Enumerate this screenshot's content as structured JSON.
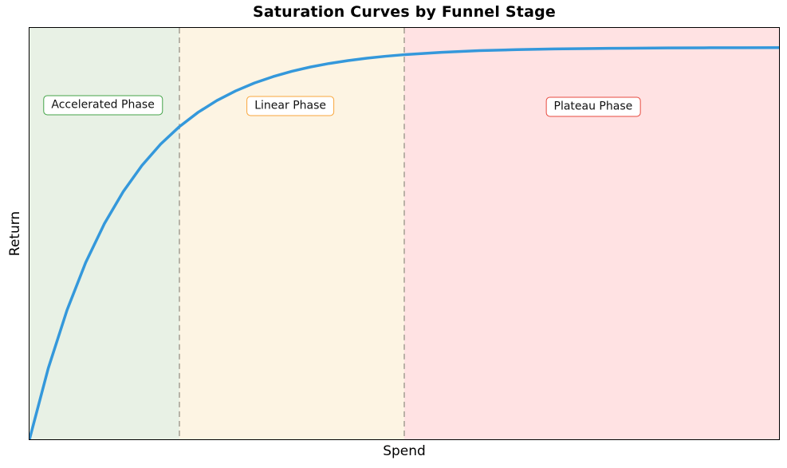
{
  "chart_data": {
    "type": "line",
    "title": "Saturation Curves by Funnel Stage",
    "xlabel": "Spend",
    "ylabel": "Return",
    "xlim": [
      0,
      1
    ],
    "ylim": [
      0,
      1.05
    ],
    "grid": false,
    "legend_position": "none",
    "tick_labels": "none",
    "frame_color": "#000000",
    "series": [
      {
        "name": "saturation-curve",
        "color": "#3498db",
        "line_width": 3.5,
        "formula": "y = 1 - exp(-8x)",
        "x": [
          0,
          0.025,
          0.05,
          0.075,
          0.1,
          0.125,
          0.15,
          0.175,
          0.2,
          0.225,
          0.25,
          0.275,
          0.3,
          0.325,
          0.35,
          0.375,
          0.4,
          0.425,
          0.45,
          0.475,
          0.5,
          0.55,
          0.6,
          0.65,
          0.7,
          0.75,
          0.8,
          0.85,
          0.9,
          0.95,
          1.0
        ],
        "y": [
          0,
          0.1813,
          0.3297,
          0.4512,
          0.5507,
          0.6321,
          0.6988,
          0.7534,
          0.7981,
          0.8347,
          0.8647,
          0.8892,
          0.9093,
          0.9257,
          0.9392,
          0.9502,
          0.9592,
          0.9666,
          0.9727,
          0.9776,
          0.9817,
          0.9877,
          0.9918,
          0.9945,
          0.9963,
          0.9975,
          0.9983,
          0.9989,
          0.9993,
          0.9995,
          0.9997
        ]
      }
    ],
    "regions": [
      {
        "label": "Accelerated Phase",
        "x_start": 0.0,
        "x_end": 0.2,
        "fill": "#e8f1e5",
        "label_border": "#44a449",
        "label_fx": 0.098,
        "label_fy": 0.188
      },
      {
        "label": "Linear Phase",
        "x_start": 0.2,
        "x_end": 0.5,
        "fill": "#fdf4e3",
        "label_border": "#f9a63c",
        "label_fx": 0.348,
        "label_fy": 0.19
      },
      {
        "label": "Plateau Phase",
        "x_start": 0.5,
        "x_end": 1.0,
        "fill": "#ffe2e3",
        "label_border": "#e74a3f",
        "label_fx": 0.752,
        "label_fy": 0.192
      }
    ],
    "dividers": [
      {
        "x": 0.2,
        "color": "#9a958a",
        "style": "dashed"
      },
      {
        "x": 0.5,
        "color": "#9a958a",
        "style": "dashed"
      }
    ]
  }
}
